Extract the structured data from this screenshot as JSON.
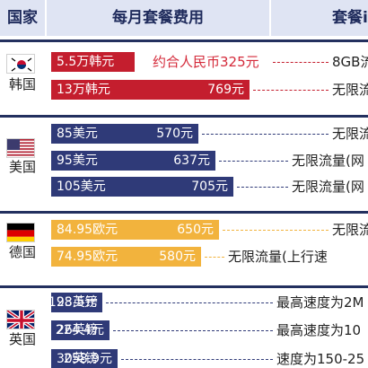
{
  "header": {
    "col_country": "国家",
    "col_fee": "每月套餐费用",
    "col_plan": "套餐i"
  },
  "colors": {
    "korea": "#c41e2e",
    "usa": "#2f3a78",
    "germany": "#f2b33d",
    "uk": "#2f3a78",
    "header_bg": "#dfe4f3"
  },
  "chart_data": {
    "type": "bar",
    "title": "",
    "xlabel": "",
    "ylabel": "",
    "groups": [
      {
        "country": "韩国",
        "flag": "korea-flag",
        "rows": [
          {
            "orig": "5.5万韩元",
            "cny": "",
            "value": 325,
            "approx": "约合人民币325元",
            "plan": "8GB流"
          },
          {
            "orig": "13万韩元",
            "cny": "769元",
            "value": 769,
            "approx": "",
            "plan": "无限流"
          }
        ]
      },
      {
        "country": "美国",
        "flag": "usa-flag",
        "rows": [
          {
            "orig": "85美元",
            "cny": "570元",
            "value": 570,
            "approx": "",
            "plan": "无限流"
          },
          {
            "orig": "95美元",
            "cny": "637元",
            "value": 637,
            "approx": "",
            "plan": "无限流量(网"
          },
          {
            "orig": "105美元",
            "cny": "705元",
            "value": 705,
            "approx": "",
            "plan": "无限流量(网"
          }
        ]
      },
      {
        "country": "德国",
        "flag": "germany-flag",
        "rows": [
          {
            "orig": "84.95欧元",
            "cny": "650元",
            "value": 650,
            "approx": "",
            "plan": "无限流"
          },
          {
            "orig": "74.95欧元",
            "cny": "580元",
            "value": 580,
            "approx": "",
            "plan": "无限流量(上行速"
          }
        ]
      },
      {
        "country": "英国",
        "flag": "uk-flag",
        "rows": [
          {
            "orig": "23英镑",
            "cny": "198.5元",
            "value": 198.5,
            "approx": "",
            "plan": "最高速度为2M"
          },
          {
            "orig": "26英镑",
            "cny": "224.4元",
            "value": 224.4,
            "approx": "",
            "plan": "最高速度为10"
          },
          {
            "orig": "30英镑",
            "cny": "258.9元",
            "value": 258.9,
            "approx": "",
            "plan": "速度为150-25"
          }
        ]
      }
    ]
  }
}
